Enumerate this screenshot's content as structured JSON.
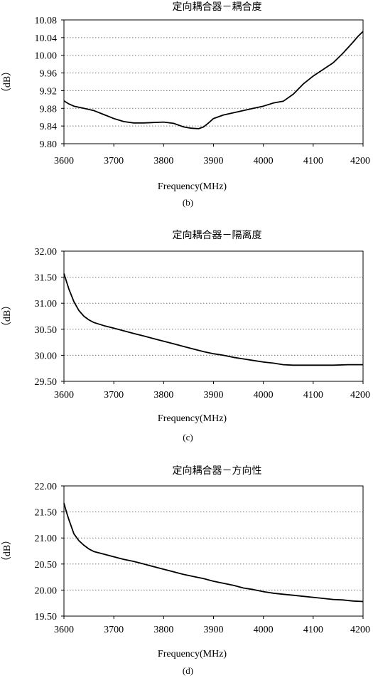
{
  "chart_data": [
    {
      "type": "line",
      "title": "定向耦合器－耦合度",
      "xlabel": "Frequency(MHz)",
      "ylabel": "（dB）",
      "caption": "(b)",
      "xlim": [
        3600,
        4200
      ],
      "ylim": [
        9.8,
        10.08
      ],
      "xticks": [
        "3600",
        "3700",
        "3800",
        "3900",
        "4000",
        "4100",
        "4200"
      ],
      "yticks": [
        "9.80",
        "9.84",
        "9.88",
        "9.92",
        "9.96",
        "10.00",
        "10.04",
        "10.08"
      ],
      "grid": "horizontal-dotted",
      "series": [
        {
          "x": [
            3600,
            3610,
            3620,
            3640,
            3660,
            3680,
            3700,
            3720,
            3740,
            3760,
            3780,
            3800,
            3820,
            3840,
            3855,
            3870,
            3880,
            3890,
            3900,
            3920,
            3940,
            3960,
            3980,
            4000,
            4020,
            4040,
            4060,
            4080,
            4100,
            4120,
            4140,
            4160,
            4180,
            4190,
            4200
          ],
          "y": [
            9.897,
            9.89,
            9.885,
            9.88,
            9.875,
            9.866,
            9.857,
            9.85,
            9.847,
            9.847,
            9.848,
            9.849,
            9.846,
            9.838,
            9.835,
            9.834,
            9.838,
            9.847,
            9.857,
            9.865,
            9.87,
            9.875,
            9.88,
            9.885,
            9.892,
            9.896,
            9.912,
            9.935,
            9.953,
            9.968,
            9.983,
            10.005,
            10.03,
            10.043,
            10.054
          ]
        }
      ]
    },
    {
      "type": "line",
      "title": "定向耦合器－隔离度",
      "xlabel": "Frequency(MHz)",
      "ylabel": "（dB）",
      "caption": "(c)",
      "xlim": [
        3600,
        4200
      ],
      "ylim": [
        29.5,
        32.0
      ],
      "xticks": [
        "3600",
        "3700",
        "3800",
        "3900",
        "4000",
        "4100",
        "4200"
      ],
      "yticks": [
        "29.50",
        "30.00",
        "30.50",
        "31.00",
        "31.50",
        "32.00"
      ],
      "grid": "horizontal-dotted",
      "series": [
        {
          "x": [
            3600,
            3605,
            3610,
            3620,
            3630,
            3640,
            3650,
            3660,
            3680,
            3700,
            3720,
            3740,
            3760,
            3780,
            3800,
            3820,
            3840,
            3860,
            3880,
            3900,
            3920,
            3940,
            3960,
            3980,
            4000,
            4020,
            4040,
            4060,
            4100,
            4140,
            4170,
            4200
          ],
          "y": [
            31.57,
            31.42,
            31.27,
            31.03,
            30.86,
            30.75,
            30.68,
            30.63,
            30.57,
            30.52,
            30.47,
            30.42,
            30.37,
            30.32,
            30.27,
            30.22,
            30.17,
            30.12,
            30.07,
            30.03,
            30.0,
            29.96,
            29.93,
            29.9,
            29.87,
            29.85,
            29.82,
            29.81,
            29.81,
            29.81,
            29.82,
            29.82
          ]
        }
      ]
    },
    {
      "type": "line",
      "title": "定向耦合器－方向性",
      "xlabel": "Frequency(MHz)",
      "ylabel": "（dB）",
      "caption": "(d)",
      "xlim": [
        3600,
        4200
      ],
      "ylim": [
        19.5,
        22.0
      ],
      "xticks": [
        "3600",
        "3700",
        "3800",
        "3900",
        "4000",
        "4100",
        "4200"
      ],
      "yticks": [
        "19.50",
        "20.00",
        "20.50",
        "21.00",
        "21.50",
        "22.00"
      ],
      "grid": "horizontal-dotted",
      "series": [
        {
          "x": [
            3600,
            3605,
            3610,
            3620,
            3630,
            3640,
            3650,
            3660,
            3680,
            3700,
            3720,
            3740,
            3760,
            3780,
            3800,
            3820,
            3840,
            3860,
            3880,
            3900,
            3920,
            3940,
            3960,
            3980,
            4000,
            4020,
            4040,
            4060,
            4080,
            4100,
            4120,
            4140,
            4160,
            4180,
            4200
          ],
          "y": [
            21.67,
            21.5,
            21.35,
            21.08,
            20.95,
            20.86,
            20.79,
            20.74,
            20.69,
            20.64,
            20.59,
            20.55,
            20.5,
            20.45,
            20.4,
            20.35,
            20.3,
            20.26,
            20.22,
            20.17,
            20.13,
            20.09,
            20.04,
            20.01,
            19.97,
            19.94,
            19.92,
            19.9,
            19.88,
            19.86,
            19.84,
            19.82,
            19.81,
            19.79,
            19.78
          ]
        }
      ]
    }
  ]
}
